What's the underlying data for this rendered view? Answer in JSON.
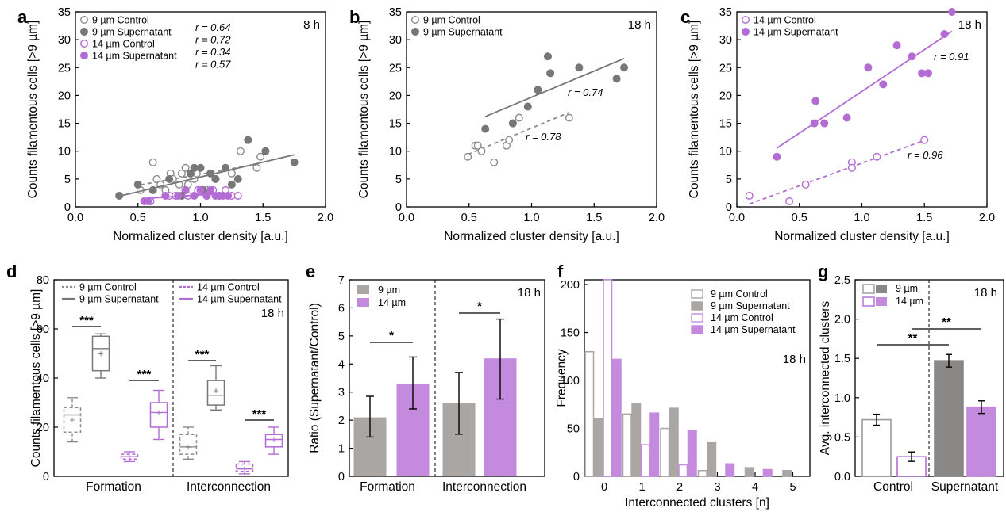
{
  "colors": {
    "grey": "#8c8c8c",
    "purple": "#b36cd3",
    "purple_light": "#c48ade",
    "grey_bar": "#a9a6a4",
    "dark": "#777777"
  },
  "chart_data": [
    {
      "panel": "a",
      "type": "scatter",
      "xlabel": "Normalized cluster density [a.u.]",
      "ylabel": "Counts filamentous cells [>9 µm]",
      "xlim": [
        0,
        2
      ],
      "ylim": [
        0,
        35
      ],
      "xticks": [
        "0.0",
        "0.5",
        "1.0",
        "1.5",
        "2.0"
      ],
      "yticks": [
        "0",
        "5",
        "10",
        "15",
        "20",
        "25",
        "30",
        "35"
      ],
      "time_label": "8 h",
      "series": [
        {
          "name": "9 µm Control",
          "r_label": "r = 0.64",
          "x": [
            0.52,
            0.62,
            0.65,
            0.68,
            0.72,
            0.76,
            0.78,
            0.83,
            0.85,
            0.88,
            0.9,
            0.92,
            0.95,
            0.97,
            1.05,
            1.12,
            1.25,
            1.32,
            1.45,
            1.48
          ],
          "y": [
            3,
            8,
            5,
            4,
            3,
            6,
            5,
            4,
            6,
            7,
            4,
            6,
            5,
            6,
            3,
            5,
            6,
            10,
            7,
            9
          ]
        },
        {
          "name": "9 µm Supernatant",
          "r_label": "r = 0.72",
          "x": [
            0.35,
            0.5,
            0.62,
            0.75,
            0.85,
            0.88,
            0.92,
            0.95,
            1.0,
            1.02,
            1.08,
            1.12,
            1.2,
            1.25,
            1.3,
            1.38,
            1.52,
            1.75
          ],
          "y": [
            2,
            4,
            3,
            5,
            2,
            3,
            6,
            7,
            7,
            3,
            6,
            5,
            7,
            4,
            5,
            12,
            10,
            8
          ]
        },
        {
          "name": "14 µm Control",
          "r_label": "r = 0.34",
          "x": [
            0.6,
            0.75,
            0.8,
            0.9,
            0.98,
            1.05,
            1.1,
            1.15,
            1.2,
            1.25,
            1.3
          ],
          "y": [
            1,
            2,
            2,
            2,
            3,
            2,
            3,
            2,
            3,
            2,
            2
          ]
        },
        {
          "name": "14 µm Supernatant",
          "r_label": "r = 0.57",
          "x": [
            0.55,
            0.58,
            0.72,
            0.82,
            0.88,
            0.95,
            1.0,
            1.05,
            1.08,
            1.12,
            1.15,
            1.18,
            1.22
          ],
          "y": [
            1,
            1,
            2,
            2,
            3,
            2,
            3,
            2,
            3,
            2,
            2,
            2,
            2
          ]
        }
      ]
    },
    {
      "panel": "b",
      "type": "scatter",
      "xlabel": "Normalized cluster density [a.u.]",
      "ylabel": "Counts filamentous cells [>9 µm]",
      "xlim": [
        0,
        2
      ],
      "ylim": [
        0,
        35
      ],
      "xticks": [
        "0.0",
        "0.5",
        "1.0",
        "1.5",
        "2.0"
      ],
      "yticks": [
        "0",
        "5",
        "10",
        "15",
        "20",
        "25",
        "30",
        "35"
      ],
      "time_label": "18 h",
      "series": [
        {
          "name": "9 µm Control",
          "r_label": "r = 0.78",
          "x": [
            0.49,
            0.55,
            0.57,
            0.6,
            0.7,
            0.8,
            0.82,
            0.85,
            0.9,
            1.3
          ],
          "y": [
            9,
            11,
            11,
            10,
            8,
            11,
            12,
            15,
            16,
            16
          ]
        },
        {
          "name": "9 µm Supernatant",
          "r_label": "r = 0.74",
          "x": [
            0.63,
            0.85,
            0.97,
            1.05,
            1.13,
            1.15,
            1.38,
            1.68,
            1.74
          ],
          "y": [
            14,
            15,
            18,
            21,
            27,
            24,
            25,
            23,
            25
          ]
        }
      ]
    },
    {
      "panel": "c",
      "type": "scatter",
      "xlabel": "Normalized cluster density [a.u.]",
      "ylabel": "Counts filamentous cells [>9 µm]",
      "xlim": [
        0,
        2
      ],
      "ylim": [
        0,
        35
      ],
      "xticks": [
        "0.0",
        "0.5",
        "1.0",
        "1.5",
        "2.0"
      ],
      "yticks": [
        "0",
        "5",
        "10",
        "15",
        "20",
        "25",
        "30",
        "35"
      ],
      "time_label": "18 h",
      "series": [
        {
          "name": "14 µm Control",
          "r_label": "r = 0.96",
          "x": [
            0.1,
            0.42,
            0.55,
            0.92,
            0.92,
            1.12,
            1.5
          ],
          "y": [
            2,
            1,
            4,
            8,
            7,
            9,
            12
          ]
        },
        {
          "name": "14 µm Supernatant",
          "r_label": "r = 0.91",
          "x": [
            0.32,
            0.62,
            0.63,
            0.7,
            0.88,
            1.05,
            1.17,
            1.28,
            1.4,
            1.48,
            1.53,
            1.66,
            1.72
          ],
          "y": [
            9,
            15,
            19,
            15,
            16,
            25,
            22,
            29,
            27,
            24,
            24,
            31,
            35
          ]
        }
      ]
    },
    {
      "panel": "d",
      "type": "box",
      "ylabel": "Counts filamentous cells [>9 µm]",
      "ylim": [
        0,
        80
      ],
      "yticks": [
        "0",
        "20",
        "40",
        "60",
        "80"
      ],
      "groups": [
        "Formation",
        "Interconnection"
      ],
      "time_label": "18 h",
      "legend": [
        "9 µm Control",
        "9 µm Supernatant",
        "14 µm Control",
        "14 µm Supernatant"
      ],
      "boxes": [
        {
          "group": "Formation",
          "name": "9 µm Control",
          "whisker_low": 14,
          "q1": 18,
          "median": 25,
          "q3": 28,
          "whisker_high": 32,
          "mean": 23
        },
        {
          "group": "Formation",
          "name": "9 µm Supernatant",
          "whisker_low": 40,
          "q1": 43,
          "median": 52,
          "q3": 57,
          "whisker_high": 58,
          "mean": 50
        },
        {
          "group": "Formation",
          "name": "14 µm Control",
          "whisker_low": 6,
          "q1": 7,
          "median": 8,
          "q3": 9,
          "whisker_high": 10,
          "mean": 8
        },
        {
          "group": "Formation",
          "name": "14 µm Supernatant",
          "whisker_low": 15,
          "q1": 20,
          "median": 26,
          "q3": 30,
          "whisker_high": 35,
          "mean": 26
        },
        {
          "group": "Interconnection",
          "name": "9 µm Control",
          "whisker_low": 7,
          "q1": 9,
          "median": 12,
          "q3": 17,
          "whisker_high": 20,
          "mean": 12
        },
        {
          "group": "Interconnection",
          "name": "9 µm Supernatant",
          "whisker_low": 27,
          "q1": 29,
          "median": 33,
          "q3": 39,
          "whisker_high": 45,
          "mean": 35
        },
        {
          "group": "Interconnection",
          "name": "14 µm Control",
          "whisker_low": 1,
          "q1": 2,
          "median": 3,
          "q3": 5,
          "whisker_high": 6,
          "mean": 3
        },
        {
          "group": "Interconnection",
          "name": "14 µm Supernatant",
          "whisker_low": 9,
          "q1": 12,
          "median": 15,
          "q3": 17,
          "whisker_high": 20,
          "mean": 15
        }
      ],
      "significance": [
        "***",
        "***",
        "***",
        "***"
      ]
    },
    {
      "panel": "e",
      "type": "bar",
      "ylabel": "Ratio (Supernatant/Control)",
      "ylim": [
        0,
        7
      ],
      "yticks": [
        "0",
        "1",
        "2",
        "3",
        "4",
        "5",
        "6",
        "7"
      ],
      "categories": [
        "Formation",
        "Interconnection"
      ],
      "time_label": "18 h",
      "series": [
        {
          "name": "9 µm",
          "values": [
            2.1,
            2.6
          ],
          "err_low": [
            1.4,
            1.5
          ],
          "err_high": [
            2.85,
            3.7
          ]
        },
        {
          "name": "14 µm",
          "values": [
            3.3,
            4.2
          ],
          "err_low": [
            2.4,
            2.75
          ],
          "err_high": [
            4.25,
            5.6
          ]
        }
      ],
      "significance": [
        "*",
        "*"
      ]
    },
    {
      "panel": "f",
      "type": "bar",
      "xlabel": "Interconnected clusters [n]",
      "ylabel": "Frequency",
      "ylim": [
        0,
        205
      ],
      "yticks": [
        "0",
        "50",
        "100",
        "150",
        "200"
      ],
      "categories": [
        "0",
        "1",
        "2",
        "3",
        "4",
        "5"
      ],
      "time_label": "18 h",
      "series": [
        {
          "name": "9 µm Control",
          "values": [
            130,
            65,
            50,
            6,
            0,
            0
          ]
        },
        {
          "name": "9 µm Supernatant",
          "values": [
            60,
            76,
            71,
            35,
            9,
            6
          ]
        },
        {
          "name": "14 µm Control",
          "values": [
            205,
            33,
            12,
            0,
            0,
            0
          ]
        },
        {
          "name": "14 µm Supernatant",
          "values": [
            122,
            66,
            48,
            13,
            7,
            0
          ]
        }
      ]
    },
    {
      "panel": "g",
      "type": "bar",
      "ylabel": "Avg. interconnected clusters",
      "ylim": [
        0,
        2.5
      ],
      "yticks": [
        "0.0",
        "0.5",
        "1.0",
        "1.5",
        "2.0",
        "2.5"
      ],
      "categories": [
        "Control",
        "Supernatant"
      ],
      "time_label": "18 h",
      "series": [
        {
          "name": "9 µm",
          "values": [
            0.72,
            1.47
          ],
          "err": [
            0.07,
            0.08
          ]
        },
        {
          "name": "14 µm",
          "values": [
            0.25,
            0.88
          ],
          "err": [
            0.06,
            0.08
          ]
        }
      ],
      "significance": [
        "**",
        "**"
      ]
    }
  ]
}
